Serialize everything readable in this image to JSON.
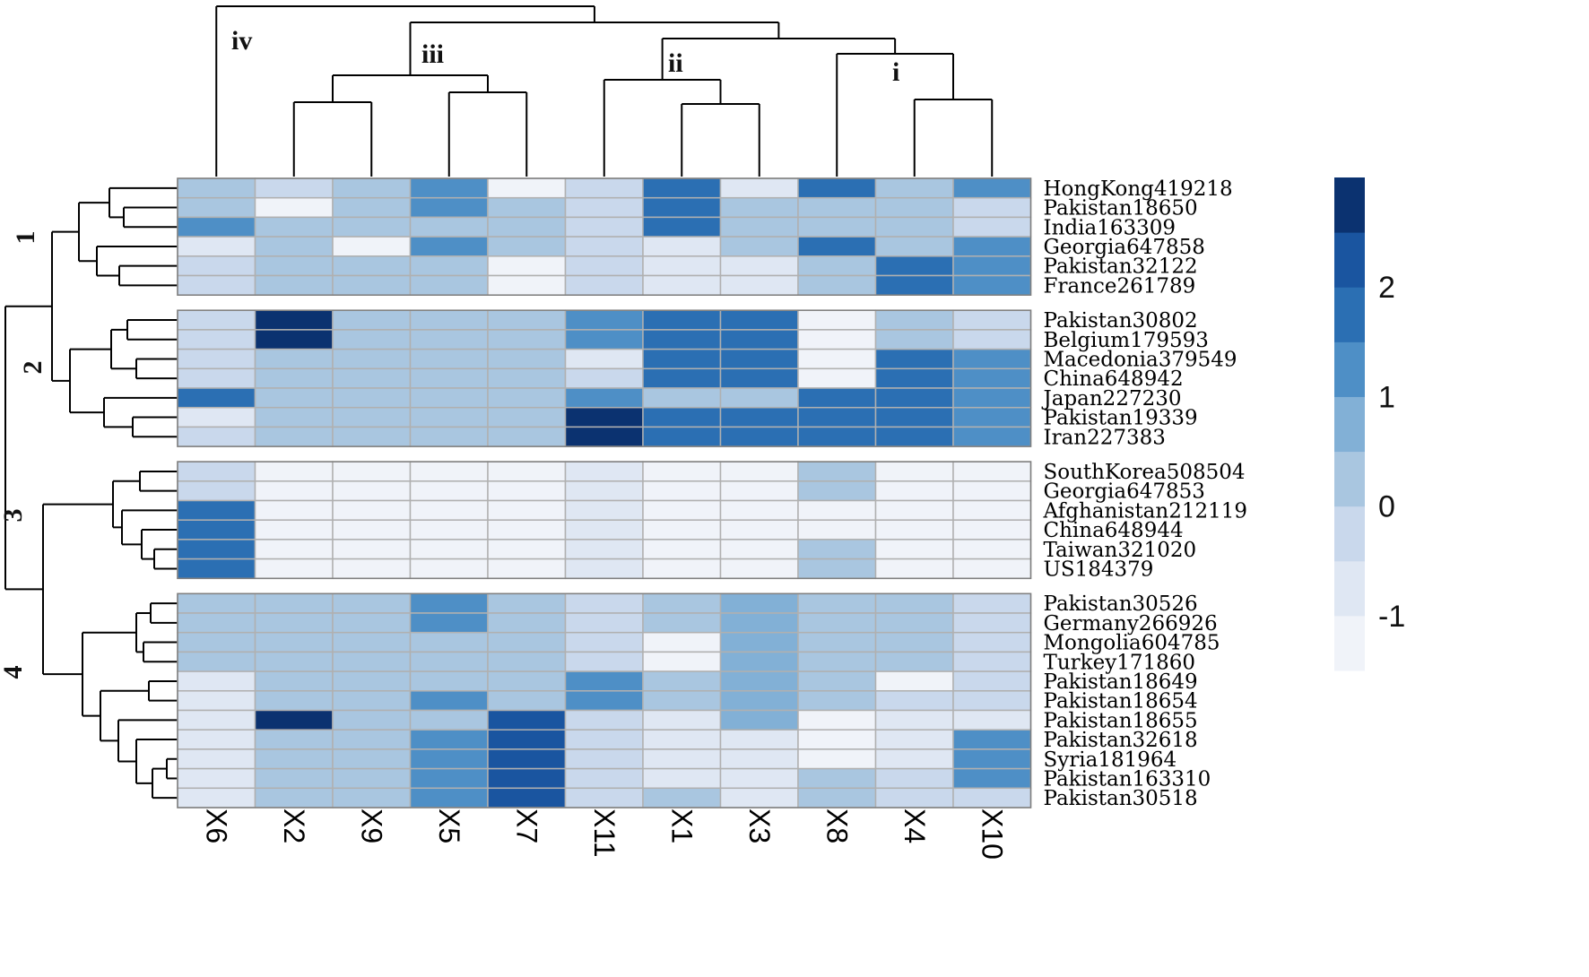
{
  "chart_data": {
    "type": "heatmap",
    "title": "",
    "columns": [
      "X6",
      "X2",
      "X9",
      "X5",
      "X7",
      "X11",
      "X1",
      "X3",
      "X8",
      "X4",
      "X10"
    ],
    "column_clusters": [
      "i",
      "ii",
      "iii",
      "iv"
    ],
    "row_clusters": [
      "1",
      "2",
      "3",
      "4"
    ],
    "groups": [
      {
        "label": "1",
        "rows": [
          {
            "name": "HongKong419218",
            "values": [
              0.3,
              -0.3,
              0.3,
              1.2,
              -1.5,
              -0.3,
              1.8,
              -0.7,
              1.8,
              0.3,
              1.0
            ]
          },
          {
            "name": "Pakistan18650",
            "values": [
              0.3,
              -1.5,
              0.3,
              1.2,
              0.0,
              -0.3,
              1.8,
              0.3,
              0.0,
              0.0,
              -0.3
            ]
          },
          {
            "name": "India163309",
            "values": [
              1.2,
              0.0,
              0.3,
              0.0,
              0.0,
              -0.3,
              1.8,
              0.3,
              0.0,
              0.0,
              -0.3
            ]
          },
          {
            "name": "Georgia647858",
            "values": [
              -0.7,
              0.0,
              -1.5,
              1.2,
              0.0,
              -0.3,
              -0.7,
              0.3,
              1.8,
              0.0,
              1.0
            ]
          },
          {
            "name": "Pakistan32122",
            "values": [
              -0.3,
              0.0,
              0.3,
              0.0,
              -1.5,
              -0.3,
              -0.7,
              -0.7,
              0.0,
              1.8,
              1.0
            ]
          },
          {
            "name": "France261789",
            "values": [
              -0.3,
              0.0,
              0.3,
              0.0,
              -1.5,
              -0.3,
              -0.7,
              -0.7,
              0.0,
              1.8,
              1.0
            ]
          }
        ]
      },
      {
        "label": "2",
        "rows": [
          {
            "name": "Pakistan30802",
            "values": [
              -0.3,
              2.5,
              0.3,
              0.0,
              0.0,
              1.0,
              1.8,
              1.8,
              -1.5,
              0.0,
              -0.3
            ]
          },
          {
            "name": "Belgium179593",
            "values": [
              -0.3,
              2.5,
              0.3,
              0.0,
              0.0,
              1.0,
              1.8,
              1.8,
              -1.5,
              0.0,
              -0.3
            ]
          },
          {
            "name": "Macedonia379549",
            "values": [
              -0.3,
              0.0,
              0.3,
              0.0,
              0.0,
              -0.7,
              1.8,
              1.8,
              -1.5,
              1.8,
              1.0
            ]
          },
          {
            "name": "China648942",
            "values": [
              -0.3,
              0.0,
              0.3,
              0.0,
              0.0,
              -0.3,
              1.8,
              1.8,
              -1.5,
              1.8,
              1.0
            ]
          },
          {
            "name": "Japan227230",
            "values": [
              1.8,
              0.0,
              0.3,
              0.0,
              0.0,
              1.0,
              0.3,
              0.3,
              1.8,
              1.8,
              1.0
            ]
          },
          {
            "name": "Pakistan19339",
            "values": [
              -0.7,
              0.0,
              0.3,
              0.0,
              0.0,
              3.0,
              1.8,
              1.8,
              1.8,
              1.8,
              1.0
            ]
          },
          {
            "name": "Iran227383",
            "values": [
              -0.3,
              0.0,
              0.3,
              0.0,
              0.0,
              3.0,
              1.8,
              1.8,
              1.8,
              1.8,
              1.0
            ]
          }
        ]
      },
      {
        "label": "3",
        "rows": [
          {
            "name": "SouthKorea508504",
            "values": [
              -0.3,
              -1.5,
              -1.5,
              -1.5,
              -1.5,
              -0.7,
              -1.2,
              -1.2,
              0.0,
              -1.2,
              -1.5
            ]
          },
          {
            "name": "Georgia647853",
            "values": [
              -0.3,
              -1.5,
              -1.5,
              -1.5,
              -1.5,
              -0.7,
              -1.2,
              -1.2,
              0.0,
              -1.2,
              -1.5
            ]
          },
          {
            "name": "Afghanistan212119",
            "values": [
              1.8,
              -1.5,
              -1.5,
              -1.5,
              -1.5,
              -0.7,
              -1.2,
              -1.2,
              -1.5,
              -1.2,
              -1.5
            ]
          },
          {
            "name": "China648944",
            "values": [
              1.8,
              -1.5,
              -1.5,
              -1.5,
              -1.5,
              -0.7,
              -1.2,
              -1.2,
              -1.5,
              -1.2,
              -1.5
            ]
          },
          {
            "name": "Taiwan321020",
            "values": [
              1.8,
              -1.5,
              -1.5,
              -1.5,
              -1.5,
              -0.7,
              -1.2,
              -1.2,
              0.0,
              -1.2,
              -1.5
            ]
          },
          {
            "name": "US184379",
            "values": [
              1.8,
              -1.5,
              -1.5,
              -1.5,
              -1.5,
              -0.7,
              -1.2,
              -1.2,
              0.0,
              -1.2,
              -1.5
            ]
          }
        ]
      },
      {
        "label": "4",
        "rows": [
          {
            "name": "Pakistan30526",
            "values": [
              0.3,
              0.3,
              0.3,
              1.2,
              0.0,
              -0.3,
              0.3,
              0.5,
              0.3,
              0.0,
              -0.3
            ]
          },
          {
            "name": "Germany266926",
            "values": [
              0.3,
              0.3,
              0.3,
              1.2,
              0.0,
              -0.3,
              0.3,
              0.5,
              0.3,
              0.0,
              -0.3
            ]
          },
          {
            "name": "Mongolia604785",
            "values": [
              0.3,
              0.3,
              0.3,
              0.0,
              0.0,
              -0.3,
              -1.2,
              0.5,
              0.3,
              0.0,
              -0.3
            ]
          },
          {
            "name": "Turkey171860",
            "values": [
              0.3,
              0.3,
              0.3,
              0.0,
              0.0,
              -0.3,
              -1.2,
              0.5,
              0.3,
              0.0,
              -0.3
            ]
          },
          {
            "name": "Pakistan18649",
            "values": [
              -0.7,
              0.0,
              0.3,
              0.0,
              0.0,
              1.0,
              0.0,
              0.5,
              0.0,
              -1.2,
              -0.3
            ]
          },
          {
            "name": "Pakistan18654",
            "values": [
              -0.7,
              0.0,
              0.3,
              1.2,
              0.0,
              1.0,
              0.0,
              0.5,
              0.0,
              -0.3,
              -0.3
            ]
          },
          {
            "name": "Pakistan18655",
            "values": [
              -0.7,
              2.5,
              0.3,
              0.0,
              2.0,
              -0.3,
              -0.7,
              0.5,
              -1.2,
              -0.7,
              -0.7
            ]
          },
          {
            "name": "Pakistan32618",
            "values": [
              -0.7,
              0.0,
              0.3,
              1.2,
              2.0,
              -0.3,
              -0.7,
              -0.7,
              -1.2,
              -0.7,
              1.2
            ]
          },
          {
            "name": "Syria181964",
            "values": [
              -0.7,
              0.0,
              0.3,
              1.2,
              2.0,
              -0.3,
              -0.7,
              -0.7,
              -1.2,
              -0.7,
              1.2
            ]
          },
          {
            "name": "Pakistan163310",
            "values": [
              -0.7,
              0.0,
              0.3,
              1.2,
              2.0,
              -0.3,
              -0.7,
              -0.7,
              0.0,
              -0.3,
              1.2
            ]
          },
          {
            "name": "Pakistan30518",
            "values": [
              -0.7,
              0.0,
              0.3,
              1.2,
              2.0,
              -0.3,
              0.0,
              -0.7,
              0.0,
              -0.3,
              -0.3
            ]
          }
        ]
      }
    ],
    "color_scale": {
      "range": [
        -1.5,
        3.0
      ],
      "bins": 9,
      "colors": [
        "#f0f3f9",
        "#dfe7f3",
        "#c9d8ec",
        "#a9c6e0",
        "#82b0d6",
        "#4e8fc6",
        "#2b6fb3",
        "#1a55a0",
        "#0b3270"
      ],
      "ticks": [
        -1,
        0,
        1,
        2
      ],
      "tick_labels": [
        "-1",
        "0",
        "1",
        "2"
      ]
    }
  }
}
